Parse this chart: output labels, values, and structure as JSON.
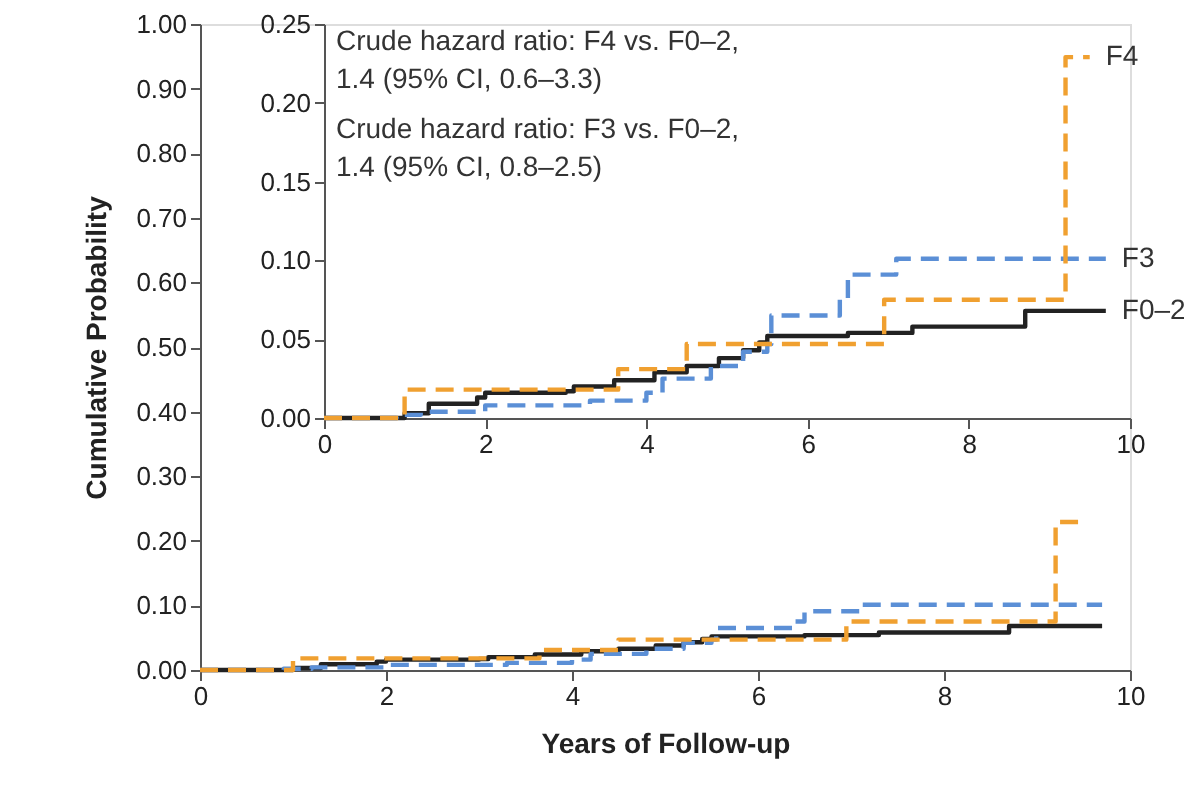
{
  "chart_data": [
    {
      "type": "step",
      "xlabel": "Years of Follow-up",
      "ylabel": "Cumulative Probability",
      "xlim": [
        0,
        10
      ],
      "xticks": [
        0,
        2,
        4,
        6,
        8,
        10
      ],
      "ylim": [
        0,
        1
      ],
      "yticks": [
        {
          "value": 0,
          "label": "0.00"
        },
        {
          "value": 0.1,
          "label": "0.10"
        },
        {
          "value": 0.2,
          "label": "0.20"
        },
        {
          "value": 0.3,
          "label": "0.30"
        },
        {
          "value": 0.4,
          "label": "0.40"
        },
        {
          "value": 0.5,
          "label": "0.50"
        },
        {
          "value": 0.6,
          "label": "0.60"
        },
        {
          "value": 0.7,
          "label": "0.70"
        },
        {
          "value": 0.8,
          "label": "0.80"
        },
        {
          "value": 0.9,
          "label": "0.90"
        },
        {
          "value": 1,
          "label": "1.00"
        }
      ],
      "grid": false,
      "series": [
        {
          "color": "#222222",
          "line_style": "solid",
          "x": [
            0,
            0.8,
            1.0,
            1.3,
            1.9,
            2.0,
            3.0,
            3.1,
            3.6,
            4.1,
            4.5,
            4.9,
            5.2,
            5.4,
            5.5,
            6.5,
            7.3,
            8.7,
            9.7
          ],
          "values": [
            0,
            0,
            0.003,
            0.009,
            0.013,
            0.016,
            0.017,
            0.02,
            0.024,
            0.029,
            0.033,
            0.038,
            0.043,
            0.048,
            0.052,
            0.054,
            0.058,
            0.068,
            0.068
          ]
        },
        {
          "color": "#5b8fd6",
          "line_style": "dashed",
          "x": [
            0,
            0.9,
            1.2,
            2.0,
            3.3,
            4.0,
            4.2,
            4.8,
            5.2,
            5.5,
            5.55,
            6.4,
            6.5,
            7.1,
            9.7
          ],
          "values": [
            0,
            0.002,
            0.004,
            0.008,
            0.011,
            0.016,
            0.025,
            0.033,
            0.042,
            0.047,
            0.065,
            0.075,
            0.091,
            0.101,
            0.101
          ]
        },
        {
          "color": "#f0a030",
          "line_style": "dashed",
          "x": [
            0,
            1.0,
            3.65,
            4.5,
            6.95,
            9.2,
            9.5
          ],
          "values": [
            0,
            0.018,
            0.031,
            0.047,
            0.075,
            0.229,
            0.229
          ]
        }
      ]
    },
    {
      "type": "step",
      "xlim": [
        0,
        10
      ],
      "xticks": [
        0,
        2,
        4,
        6,
        8,
        10
      ],
      "ylim": [
        0,
        0.25
      ],
      "yticks": [
        {
          "value": 0,
          "label": "0.00"
        },
        {
          "value": 0.05,
          "label": "0.05"
        },
        {
          "value": 0.1,
          "label": "0.10"
        },
        {
          "value": 0.15,
          "label": "0.15"
        },
        {
          "value": 0.2,
          "label": "0.20"
        },
        {
          "value": 0.25,
          "label": "0.25"
        }
      ],
      "grid": false,
      "annotations": [
        "Crude hazard ratio: F4 vs. F0–2,\n  1.4 (95% CI, 0.6–3.3)",
        "Crude hazard ratio: F3 vs. F0–2,\n  1.4 (95% CI, 0.8–2.5)"
      ],
      "series": [
        {
          "name": "F0–2",
          "color": "#222222",
          "line_style": "solid",
          "x": [
            0,
            0.8,
            1.0,
            1.3,
            1.9,
            2.0,
            3.0,
            3.1,
            3.6,
            4.1,
            4.5,
            4.9,
            5.2,
            5.4,
            5.5,
            6.5,
            7.3,
            8.7,
            9.7
          ],
          "values": [
            0,
            0,
            0.003,
            0.009,
            0.013,
            0.016,
            0.017,
            0.02,
            0.024,
            0.029,
            0.033,
            0.038,
            0.043,
            0.048,
            0.052,
            0.054,
            0.058,
            0.068,
            0.068
          ]
        },
        {
          "name": "F3",
          "color": "#5b8fd6",
          "line_style": "dashed",
          "x": [
            0,
            0.9,
            1.2,
            2.0,
            3.3,
            4.0,
            4.2,
            4.8,
            5.2,
            5.5,
            5.55,
            6.4,
            6.5,
            7.1,
            9.7
          ],
          "values": [
            0,
            0.002,
            0.004,
            0.008,
            0.011,
            0.016,
            0.025,
            0.033,
            0.042,
            0.047,
            0.065,
            0.075,
            0.091,
            0.101,
            0.101
          ]
        },
        {
          "name": "F4",
          "color": "#f0a030",
          "line_style": "dashed",
          "x": [
            0,
            1.0,
            3.65,
            4.5,
            6.95,
            9.2,
            9.5
          ],
          "values": [
            0,
            0.018,
            0.031,
            0.047,
            0.075,
            0.229,
            0.229
          ]
        }
      ]
    }
  ]
}
